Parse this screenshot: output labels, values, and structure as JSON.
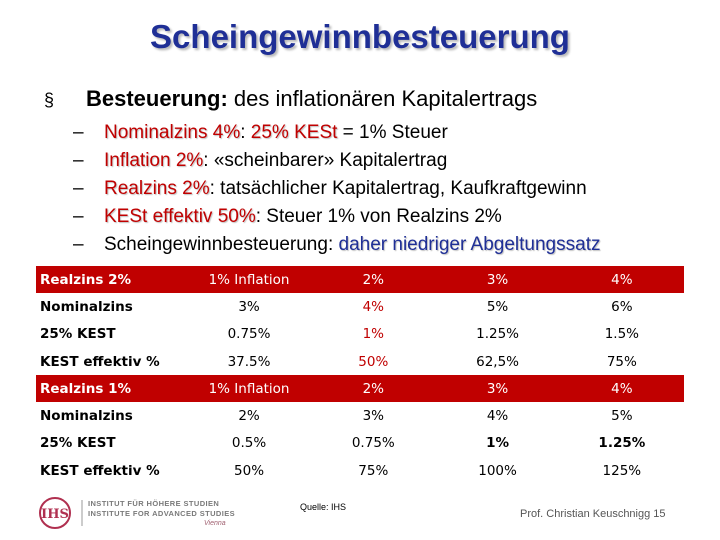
{
  "slide": {
    "title": "Scheingewinnbesteuerung",
    "main_bullet": {
      "marker": "§",
      "bold": "Besteuerung:",
      "rest": " des inflationären Kapitalertrags"
    },
    "sub_bullets": [
      {
        "dash": "–",
        "highlight": "Nominalzins 4%",
        "sep": ": ",
        "highlight2": "25% KESt",
        "rest": " = 1% Steuer"
      },
      {
        "dash": "–",
        "highlight": "Inflation 2%",
        "rest": ": «scheinbarer» Kapitalertrag"
      },
      {
        "dash": "–",
        "highlight": "Realzins 2%",
        "rest": ": tatsächlicher Kapitalertrag, Kaufkraftgewinn"
      },
      {
        "dash": "–",
        "highlight": "KESt effektiv 50%",
        "rest": ": Steuer 1% von Realzins 2%"
      },
      {
        "dash": "–",
        "prefix": "Scheingewinnbesteuerung: ",
        "blue": "daher niedriger Abgeltungssatz"
      }
    ],
    "table": [
      {
        "header": true,
        "cells": [
          "Realzins 2%",
          "1% Inflation",
          "2%",
          "3%",
          "4%"
        ]
      },
      {
        "cells": [
          "Nominalzins",
          "3%",
          "4%",
          "5%",
          "6%"
        ],
        "red": [
          2
        ]
      },
      {
        "cells": [
          "25% KEST",
          "0.75%",
          "1%",
          "1.25%",
          "1.5%"
        ],
        "red": [
          2
        ]
      },
      {
        "cells": [
          "KEST effektiv %",
          "37.5%",
          "50%",
          "62,5%",
          "75%"
        ],
        "red": [
          2
        ]
      },
      {
        "header": true,
        "cells": [
          "Realzins 1%",
          "1% Inflation",
          "2%",
          "3%",
          "4%"
        ]
      },
      {
        "cells": [
          "Nominalzins",
          "2%",
          "3%",
          "4%",
          "5%"
        ]
      },
      {
        "cells": [
          "25% KEST",
          "0.5%",
          "0.75%",
          "1%",
          "1.25%"
        ],
        "bold": [
          3,
          4
        ]
      },
      {
        "cells": [
          "KEST effektiv %",
          "50%",
          "75%",
          "100%",
          "125%"
        ]
      }
    ],
    "logo": {
      "abbr": "IHS",
      "line1": "INSTITUT FÜR HÖHERE STUDIEN",
      "line2": "INSTITUTE FOR ADVANCED STUDIES",
      "city": "Vienna"
    },
    "source": "Quelle: IHS",
    "footer": "Prof. Christian Keuschnigg 15",
    "colors": {
      "title": "#1f2f96",
      "accent": "#c00000"
    }
  }
}
